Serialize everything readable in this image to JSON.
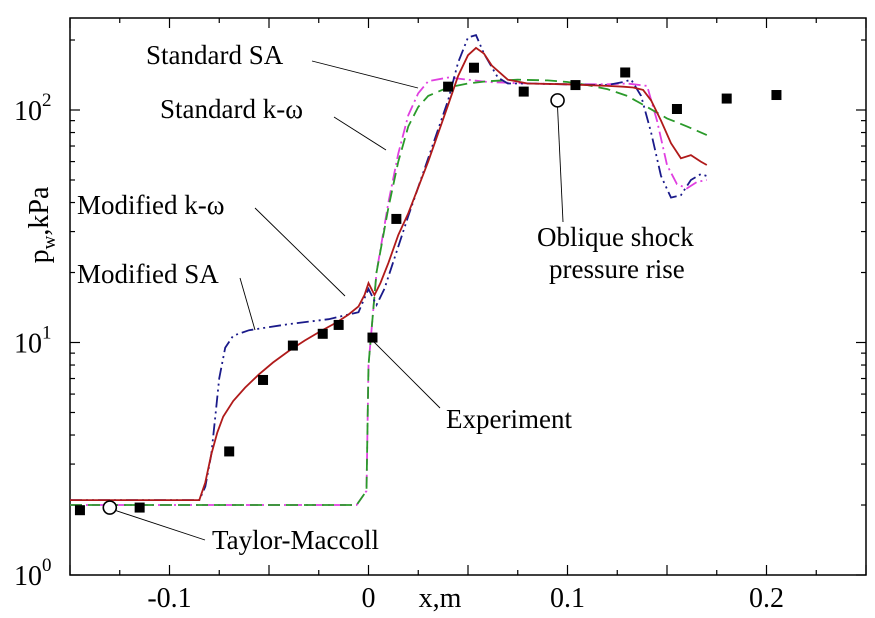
{
  "chart_data": {
    "type": "line",
    "xlabel": "x,m",
    "ylabel_main": "p",
    "ylabel_sub": "w",
    "ylabel_unit": ",kPa",
    "xlim": [
      -0.15,
      0.25
    ],
    "ylim": [
      1,
      250
    ],
    "yscale": "log",
    "grid": false,
    "x_ticks": [
      {
        "value": -0.1,
        "label": "-0.1"
      },
      {
        "value": 0,
        "label": "0"
      },
      {
        "value": 0.1,
        "label": "0.1"
      },
      {
        "value": 0.2,
        "label": "0.2"
      }
    ],
    "y_ticks": [
      {
        "value": 1,
        "base": "10",
        "exp": "0"
      },
      {
        "value": 10,
        "base": "10",
        "exp": "1"
      },
      {
        "value": 100,
        "base": "10",
        "exp": "2"
      }
    ],
    "series": [
      {
        "name": "Standard SA",
        "color": "#e040e0",
        "dash": "12,4,2,4",
        "x": [
          -0.15,
          -0.006,
          -0.001,
          0.0,
          0.004,
          0.01,
          0.015,
          0.02,
          0.025,
          0.03,
          0.04,
          0.05,
          0.06,
          0.08,
          0.1,
          0.12,
          0.13,
          0.14,
          0.145,
          0.15,
          0.155,
          0.16,
          0.165,
          0.17
        ],
        "y": [
          2.0,
          2.0,
          2.3,
          8.0,
          20.0,
          40.0,
          65.0,
          95.0,
          118.0,
          133.0,
          138.0,
          135.0,
          132.0,
          130.0,
          129.0,
          129.0,
          130.0,
          127.0,
          90.0,
          58.0,
          48.0,
          46.0,
          49.0,
          50.0
        ]
      },
      {
        "name": "Standard k-ω",
        "color": "#2a9a2a",
        "dash": "12,6",
        "x": [
          -0.15,
          -0.006,
          -0.001,
          0.0,
          0.004,
          0.01,
          0.015,
          0.02,
          0.025,
          0.03,
          0.04,
          0.05,
          0.06,
          0.075,
          0.09,
          0.1,
          0.11,
          0.12,
          0.13,
          0.14,
          0.15,
          0.16,
          0.17
        ],
        "y": [
          2.0,
          2.0,
          2.3,
          8.0,
          20.0,
          38.0,
          60.0,
          85.0,
          103.0,
          115.0,
          125.0,
          130.0,
          133.0,
          135.0,
          134.0,
          132.0,
          128.0,
          123.0,
          115.0,
          103.0,
          92.0,
          85.0,
          78.0
        ]
      },
      {
        "name": "Modified k-ω",
        "color": "#1a1a8a",
        "dash": "12,4,2,4,2,4",
        "x": [
          -0.15,
          -0.087,
          -0.085,
          -0.082,
          -0.079,
          -0.077,
          -0.075,
          -0.072,
          -0.068,
          -0.06,
          -0.04,
          -0.02,
          -0.005,
          0.0,
          0.004,
          0.008,
          0.013,
          0.02,
          0.03,
          0.04,
          0.045,
          0.05,
          0.054,
          0.058,
          0.065,
          0.07,
          0.08,
          0.1,
          0.12,
          0.128,
          0.132,
          0.137,
          0.142,
          0.147,
          0.152,
          0.157,
          0.162,
          0.167,
          0.17
        ],
        "y": [
          2.1,
          2.1,
          2.1,
          2.4,
          3.3,
          4.8,
          7.0,
          9.5,
          10.7,
          11.3,
          12.0,
          12.6,
          13.5,
          17.0,
          14.5,
          17.0,
          23.0,
          35.0,
          62.0,
          110.0,
          160.0,
          205.0,
          210.0,
          175.0,
          138.0,
          130.0,
          130.0,
          129.0,
          128.0,
          132.0,
          135.0,
          115.0,
          80.0,
          52.0,
          42.0,
          43.0,
          50.0,
          53.0,
          52.0
        ]
      },
      {
        "name": "Modified SA",
        "color": "#b01a1a",
        "dash": "",
        "x": [
          -0.15,
          -0.087,
          -0.085,
          -0.082,
          -0.079,
          -0.076,
          -0.073,
          -0.068,
          -0.062,
          -0.055,
          -0.048,
          -0.04,
          -0.032,
          -0.024,
          -0.016,
          -0.01,
          -0.005,
          -0.002,
          0.0,
          0.003,
          0.006,
          0.01,
          0.015,
          0.02,
          0.03,
          0.04,
          0.045,
          0.05,
          0.054,
          0.058,
          0.062,
          0.07,
          0.08,
          0.1,
          0.12,
          0.128,
          0.133,
          0.138,
          0.142,
          0.147,
          0.152,
          0.157,
          0.162,
          0.167,
          0.17
        ],
        "y": [
          2.1,
          2.1,
          2.1,
          2.5,
          3.3,
          4.1,
          4.8,
          5.6,
          6.4,
          7.3,
          8.2,
          9.2,
          10.2,
          11.2,
          12.2,
          13.2,
          14.3,
          16.0,
          18.0,
          16.0,
          18.0,
          22.0,
          29.0,
          36.0,
          60.0,
          105.0,
          140.0,
          172.0,
          185.0,
          175.0,
          155.0,
          135.0,
          130.0,
          129.0,
          127.0,
          126.0,
          125.0,
          122.0,
          110.0,
          90.0,
          72.0,
          62.0,
          64.0,
          60.0,
          58.0
        ]
      }
    ],
    "experiment": {
      "name": "Experiment",
      "x": [
        -0.145,
        -0.115,
        -0.07,
        -0.053,
        -0.038,
        -0.023,
        -0.015,
        0.002,
        0.014,
        0.04,
        0.053,
        0.078,
        0.104,
        0.129,
        0.155,
        0.18,
        0.205
      ],
      "y": [
        1.9,
        1.95,
        3.4,
        6.9,
        9.7,
        10.9,
        11.9,
        10.5,
        34.0,
        126.0,
        152.0,
        120.0,
        128.0,
        145.0,
        101.0,
        112.0,
        116.0
      ]
    },
    "theory": [
      {
        "name": "Taylor-Maccoll",
        "x": -0.13,
        "y": 1.95
      },
      {
        "name": "Oblique shock pressure rise",
        "x": 0.095,
        "y": 110.0
      }
    ],
    "annotations": {
      "standard_sa": "Standard SA",
      "standard_kw": "Standard k-ω",
      "modified_kw": "Modified k-ω",
      "modified_sa": "Modified SA",
      "experiment": "Experiment",
      "taylor_maccoll": "Taylor-Maccoll",
      "oblique_line1": "Oblique shock",
      "oblique_line2": "pressure rise"
    }
  }
}
